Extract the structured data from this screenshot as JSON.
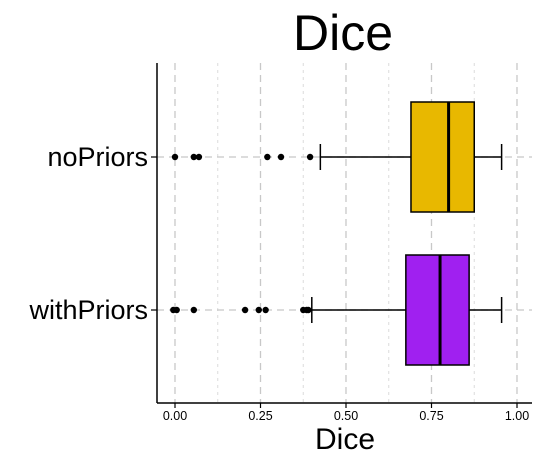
{
  "chart_data": {
    "type": "boxplot",
    "orientation": "horizontal",
    "title": "Dice",
    "xlabel": "Dice",
    "ylabel": "",
    "xlim": [
      -0.05,
      1.05
    ],
    "xticks": [
      0.0,
      0.25,
      0.5,
      0.75,
      1.0
    ],
    "xtick_labels": [
      "0.00",
      "0.25",
      "0.50",
      "0.75",
      "1.00"
    ],
    "grid": "vertical dashed",
    "legend": "none",
    "series": [
      {
        "name": "noPriors",
        "color": "#E8B800",
        "whisker_low": 0.425,
        "q1": 0.69,
        "median": 0.8,
        "q3": 0.875,
        "whisker_high": 0.955,
        "outliers": [
          0.0,
          0.055,
          0.07,
          0.27,
          0.31,
          0.395
        ]
      },
      {
        "name": "withPriors",
        "color": "#A020F0",
        "whisker_low": 0.4,
        "q1": 0.675,
        "median": 0.775,
        "q3": 0.86,
        "whisker_high": 0.955,
        "outliers": [
          -0.005,
          0.005,
          0.055,
          0.205,
          0.245,
          0.265,
          0.375,
          0.385,
          0.39
        ]
      }
    ]
  }
}
